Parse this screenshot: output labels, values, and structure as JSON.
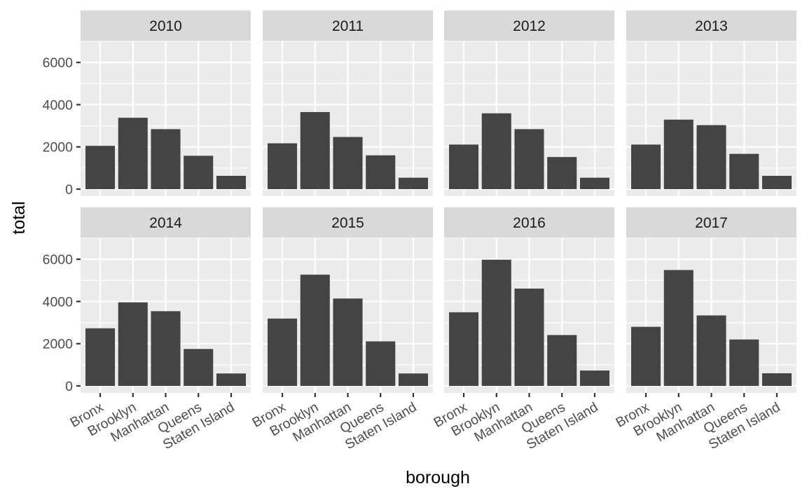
{
  "chart_data": {
    "type": "bar",
    "facet_by": "year",
    "xlabel": "borough",
    "ylabel": "total",
    "categories": [
      "Bronx",
      "Brooklyn",
      "Manhattan",
      "Queens",
      "Staten Island"
    ],
    "ylim": [
      0,
      7000
    ],
    "yticks": [
      0,
      2000,
      4000,
      6000
    ],
    "ytick_labels": [
      "0",
      "2000",
      "4000",
      "6000"
    ],
    "grid": true,
    "legend": "none",
    "colors": {
      "bar": "#444444",
      "panel": "#ebebeb",
      "strip": "#d9d9d9",
      "grid": "#ffffff"
    },
    "facets": [
      {
        "label": "2010",
        "values": [
          2050,
          3380,
          2840,
          1580,
          630
        ]
      },
      {
        "label": "2011",
        "values": [
          2170,
          3650,
          2470,
          1600,
          540
        ]
      },
      {
        "label": "2012",
        "values": [
          2110,
          3590,
          2840,
          1520,
          540
        ]
      },
      {
        "label": "2013",
        "values": [
          2110,
          3290,
          3030,
          1670,
          630
        ]
      },
      {
        "label": "2014",
        "values": [
          2730,
          3960,
          3540,
          1750,
          590
        ]
      },
      {
        "label": "2015",
        "values": [
          3190,
          5270,
          4140,
          2110,
          590
        ]
      },
      {
        "label": "2016",
        "values": [
          3490,
          5980,
          4610,
          2410,
          730
        ]
      },
      {
        "label": "2017",
        "values": [
          2800,
          5490,
          3340,
          2200,
          600
        ]
      }
    ]
  }
}
